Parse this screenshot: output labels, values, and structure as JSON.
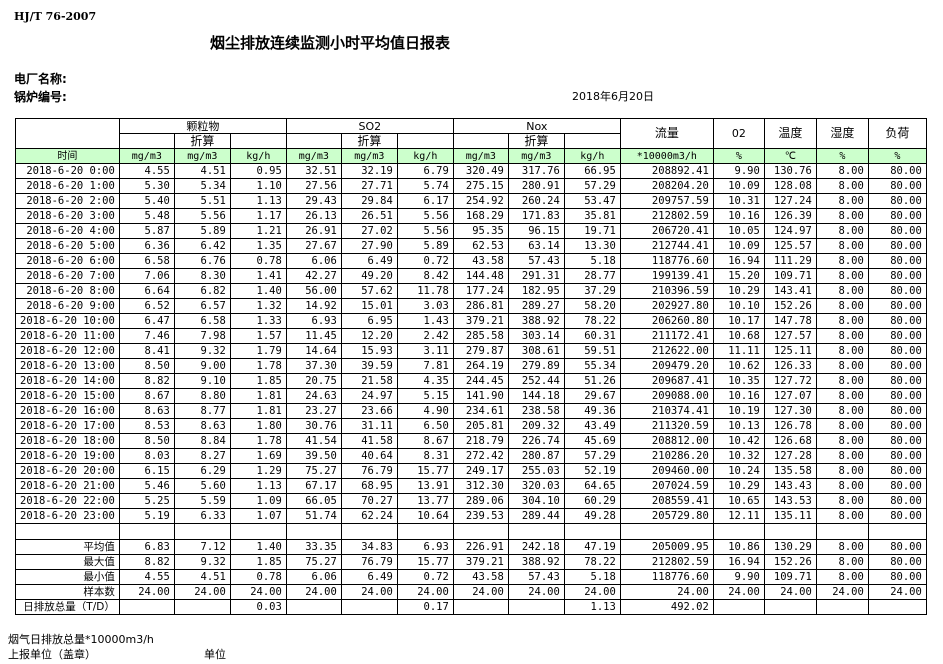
{
  "header": {
    "standard": "HJ/T  76-2007",
    "title": "烟尘排放连续监测小时平均值日报表",
    "plant_label": "电厂名称:",
    "boiler_label": "锅炉编号:",
    "date": "2018年6月20日"
  },
  "columns": {
    "groups": [
      "颗粒物",
      "SO2",
      "Nox"
    ],
    "converted": "折算",
    "flow": "流量",
    "o2": "02",
    "temp": "温度",
    "humidity": "湿度",
    "load": "负荷",
    "units": [
      "时间",
      "mg/m3",
      "mg/m3",
      "kg/h",
      "mg/m3",
      "mg/m3",
      "kg/h",
      "mg/m3",
      "mg/m3",
      "kg/h",
      "*10000m3/h",
      "%",
      "℃",
      "%",
      "%"
    ]
  },
  "rows": [
    [
      "2018-6-20 0:00",
      "4.55",
      "4.51",
      "0.95",
      "32.51",
      "32.19",
      "6.79",
      "320.49",
      "317.76",
      "66.95",
      "208892.41",
      "9.90",
      "130.76",
      "8.00",
      "80.00"
    ],
    [
      "2018-6-20 1:00",
      "5.30",
      "5.34",
      "1.10",
      "27.56",
      "27.71",
      "5.74",
      "275.15",
      "280.91",
      "57.29",
      "208204.20",
      "10.09",
      "128.08",
      "8.00",
      "80.00"
    ],
    [
      "2018-6-20 2:00",
      "5.40",
      "5.51",
      "1.13",
      "29.43",
      "29.84",
      "6.17",
      "254.92",
      "260.24",
      "53.47",
      "209757.59",
      "10.31",
      "127.24",
      "8.00",
      "80.00"
    ],
    [
      "2018-6-20 3:00",
      "5.48",
      "5.56",
      "1.17",
      "26.13",
      "26.51",
      "5.56",
      "168.29",
      "171.83",
      "35.81",
      "212802.59",
      "10.16",
      "126.39",
      "8.00",
      "80.00"
    ],
    [
      "2018-6-20 4:00",
      "5.87",
      "5.89",
      "1.21",
      "26.91",
      "27.02",
      "5.56",
      "95.35",
      "96.15",
      "19.71",
      "206720.41",
      "10.05",
      "124.97",
      "8.00",
      "80.00"
    ],
    [
      "2018-6-20 5:00",
      "6.36",
      "6.42",
      "1.35",
      "27.67",
      "27.90",
      "5.89",
      "62.53",
      "63.14",
      "13.30",
      "212744.41",
      "10.09",
      "125.57",
      "8.00",
      "80.00"
    ],
    [
      "2018-6-20 6:00",
      "6.58",
      "6.76",
      "0.78",
      "6.06",
      "6.49",
      "0.72",
      "43.58",
      "57.43",
      "5.18",
      "118776.60",
      "16.94",
      "111.29",
      "8.00",
      "80.00"
    ],
    [
      "2018-6-20 7:00",
      "7.06",
      "8.30",
      "1.41",
      "42.27",
      "49.20",
      "8.42",
      "144.48",
      "291.31",
      "28.77",
      "199139.41",
      "15.20",
      "109.71",
      "8.00",
      "80.00"
    ],
    [
      "2018-6-20 8:00",
      "6.64",
      "6.82",
      "1.40",
      "56.00",
      "57.62",
      "11.78",
      "177.24",
      "182.95",
      "37.29",
      "210396.59",
      "10.29",
      "143.41",
      "8.00",
      "80.00"
    ],
    [
      "2018-6-20 9:00",
      "6.52",
      "6.57",
      "1.32",
      "14.92",
      "15.01",
      "3.03",
      "286.81",
      "289.27",
      "58.20",
      "202927.80",
      "10.10",
      "152.26",
      "8.00",
      "80.00"
    ],
    [
      "2018-6-20 10:00",
      "6.47",
      "6.58",
      "1.33",
      "6.93",
      "6.95",
      "1.43",
      "379.21",
      "388.92",
      "78.22",
      "206260.80",
      "10.17",
      "147.78",
      "8.00",
      "80.00"
    ],
    [
      "2018-6-20 11:00",
      "7.46",
      "7.98",
      "1.57",
      "11.45",
      "12.20",
      "2.42",
      "285.58",
      "303.14",
      "60.31",
      "211172.41",
      "10.68",
      "127.57",
      "8.00",
      "80.00"
    ],
    [
      "2018-6-20 12:00",
      "8.41",
      "9.32",
      "1.79",
      "14.64",
      "15.93",
      "3.11",
      "279.87",
      "308.61",
      "59.51",
      "212622.00",
      "11.11",
      "125.11",
      "8.00",
      "80.00"
    ],
    [
      "2018-6-20 13:00",
      "8.50",
      "9.00",
      "1.78",
      "37.30",
      "39.59",
      "7.81",
      "264.19",
      "279.89",
      "55.34",
      "209479.20",
      "10.62",
      "126.33",
      "8.00",
      "80.00"
    ],
    [
      "2018-6-20 14:00",
      "8.82",
      "9.10",
      "1.85",
      "20.75",
      "21.58",
      "4.35",
      "244.45",
      "252.44",
      "51.26",
      "209687.41",
      "10.35",
      "127.72",
      "8.00",
      "80.00"
    ],
    [
      "2018-6-20 15:00",
      "8.67",
      "8.80",
      "1.81",
      "24.63",
      "24.97",
      "5.15",
      "141.90",
      "144.18",
      "29.67",
      "209088.00",
      "10.16",
      "127.07",
      "8.00",
      "80.00"
    ],
    [
      "2018-6-20 16:00",
      "8.63",
      "8.77",
      "1.81",
      "23.27",
      "23.66",
      "4.90",
      "234.61",
      "238.58",
      "49.36",
      "210374.41",
      "10.19",
      "127.30",
      "8.00",
      "80.00"
    ],
    [
      "2018-6-20 17:00",
      "8.53",
      "8.63",
      "1.80",
      "30.76",
      "31.11",
      "6.50",
      "205.81",
      "209.32",
      "43.49",
      "211320.59",
      "10.13",
      "126.78",
      "8.00",
      "80.00"
    ],
    [
      "2018-6-20 18:00",
      "8.50",
      "8.84",
      "1.78",
      "41.54",
      "41.58",
      "8.67",
      "218.79",
      "226.74",
      "45.69",
      "208812.00",
      "10.42",
      "126.68",
      "8.00",
      "80.00"
    ],
    [
      "2018-6-20 19:00",
      "8.03",
      "8.27",
      "1.69",
      "39.50",
      "40.64",
      "8.31",
      "272.42",
      "280.87",
      "57.29",
      "210286.20",
      "10.32",
      "127.28",
      "8.00",
      "80.00"
    ],
    [
      "2018-6-20 20:00",
      "6.15",
      "6.29",
      "1.29",
      "75.27",
      "76.79",
      "15.77",
      "249.17",
      "255.03",
      "52.19",
      "209460.00",
      "10.24",
      "135.58",
      "8.00",
      "80.00"
    ],
    [
      "2018-6-20 21:00",
      "5.46",
      "5.60",
      "1.13",
      "67.17",
      "68.95",
      "13.91",
      "312.30",
      "320.03",
      "64.65",
      "207024.59",
      "10.29",
      "143.43",
      "8.00",
      "80.00"
    ],
    [
      "2018-6-20 22:00",
      "5.25",
      "5.59",
      "1.09",
      "66.05",
      "70.27",
      "13.77",
      "289.06",
      "304.10",
      "60.29",
      "208559.41",
      "10.65",
      "143.53",
      "8.00",
      "80.00"
    ],
    [
      "2018-6-20 23:00",
      "5.19",
      "6.33",
      "1.07",
      "51.74",
      "62.24",
      "10.64",
      "239.53",
      "289.44",
      "49.28",
      "205729.80",
      "12.11",
      "135.11",
      "8.00",
      "80.00"
    ]
  ],
  "summary": [
    [
      "平均值",
      "6.83",
      "7.12",
      "1.40",
      "33.35",
      "34.83",
      "6.93",
      "226.91",
      "242.18",
      "47.19",
      "205009.95",
      "10.86",
      "130.29",
      "8.00",
      "80.00"
    ],
    [
      "最大值",
      "8.82",
      "9.32",
      "1.85",
      "75.27",
      "76.79",
      "15.77",
      "379.21",
      "388.92",
      "78.22",
      "212802.59",
      "16.94",
      "152.26",
      "8.00",
      "80.00"
    ],
    [
      "最小值",
      "4.55",
      "4.51",
      "0.78",
      "6.06",
      "6.49",
      "0.72",
      "43.58",
      "57.43",
      "5.18",
      "118776.60",
      "9.90",
      "109.71",
      "8.00",
      "80.00"
    ],
    [
      "样本数",
      "24.00",
      "24.00",
      "24.00",
      "24.00",
      "24.00",
      "24.00",
      "24.00",
      "24.00",
      "24.00",
      "24.00",
      "24.00",
      "24.00",
      "24.00",
      "24.00"
    ],
    [
      "日排放总量（T/D）",
      "",
      "",
      "0.03",
      "",
      "",
      "0.17",
      "",
      "",
      "1.13",
      "492.02",
      "",
      "",
      "",
      ""
    ]
  ],
  "footer": {
    "flue_gas_total": "烟气日排放总量*10000m3/h",
    "reporting_unit": "上报单位（盖章）",
    "unit": "单位"
  }
}
